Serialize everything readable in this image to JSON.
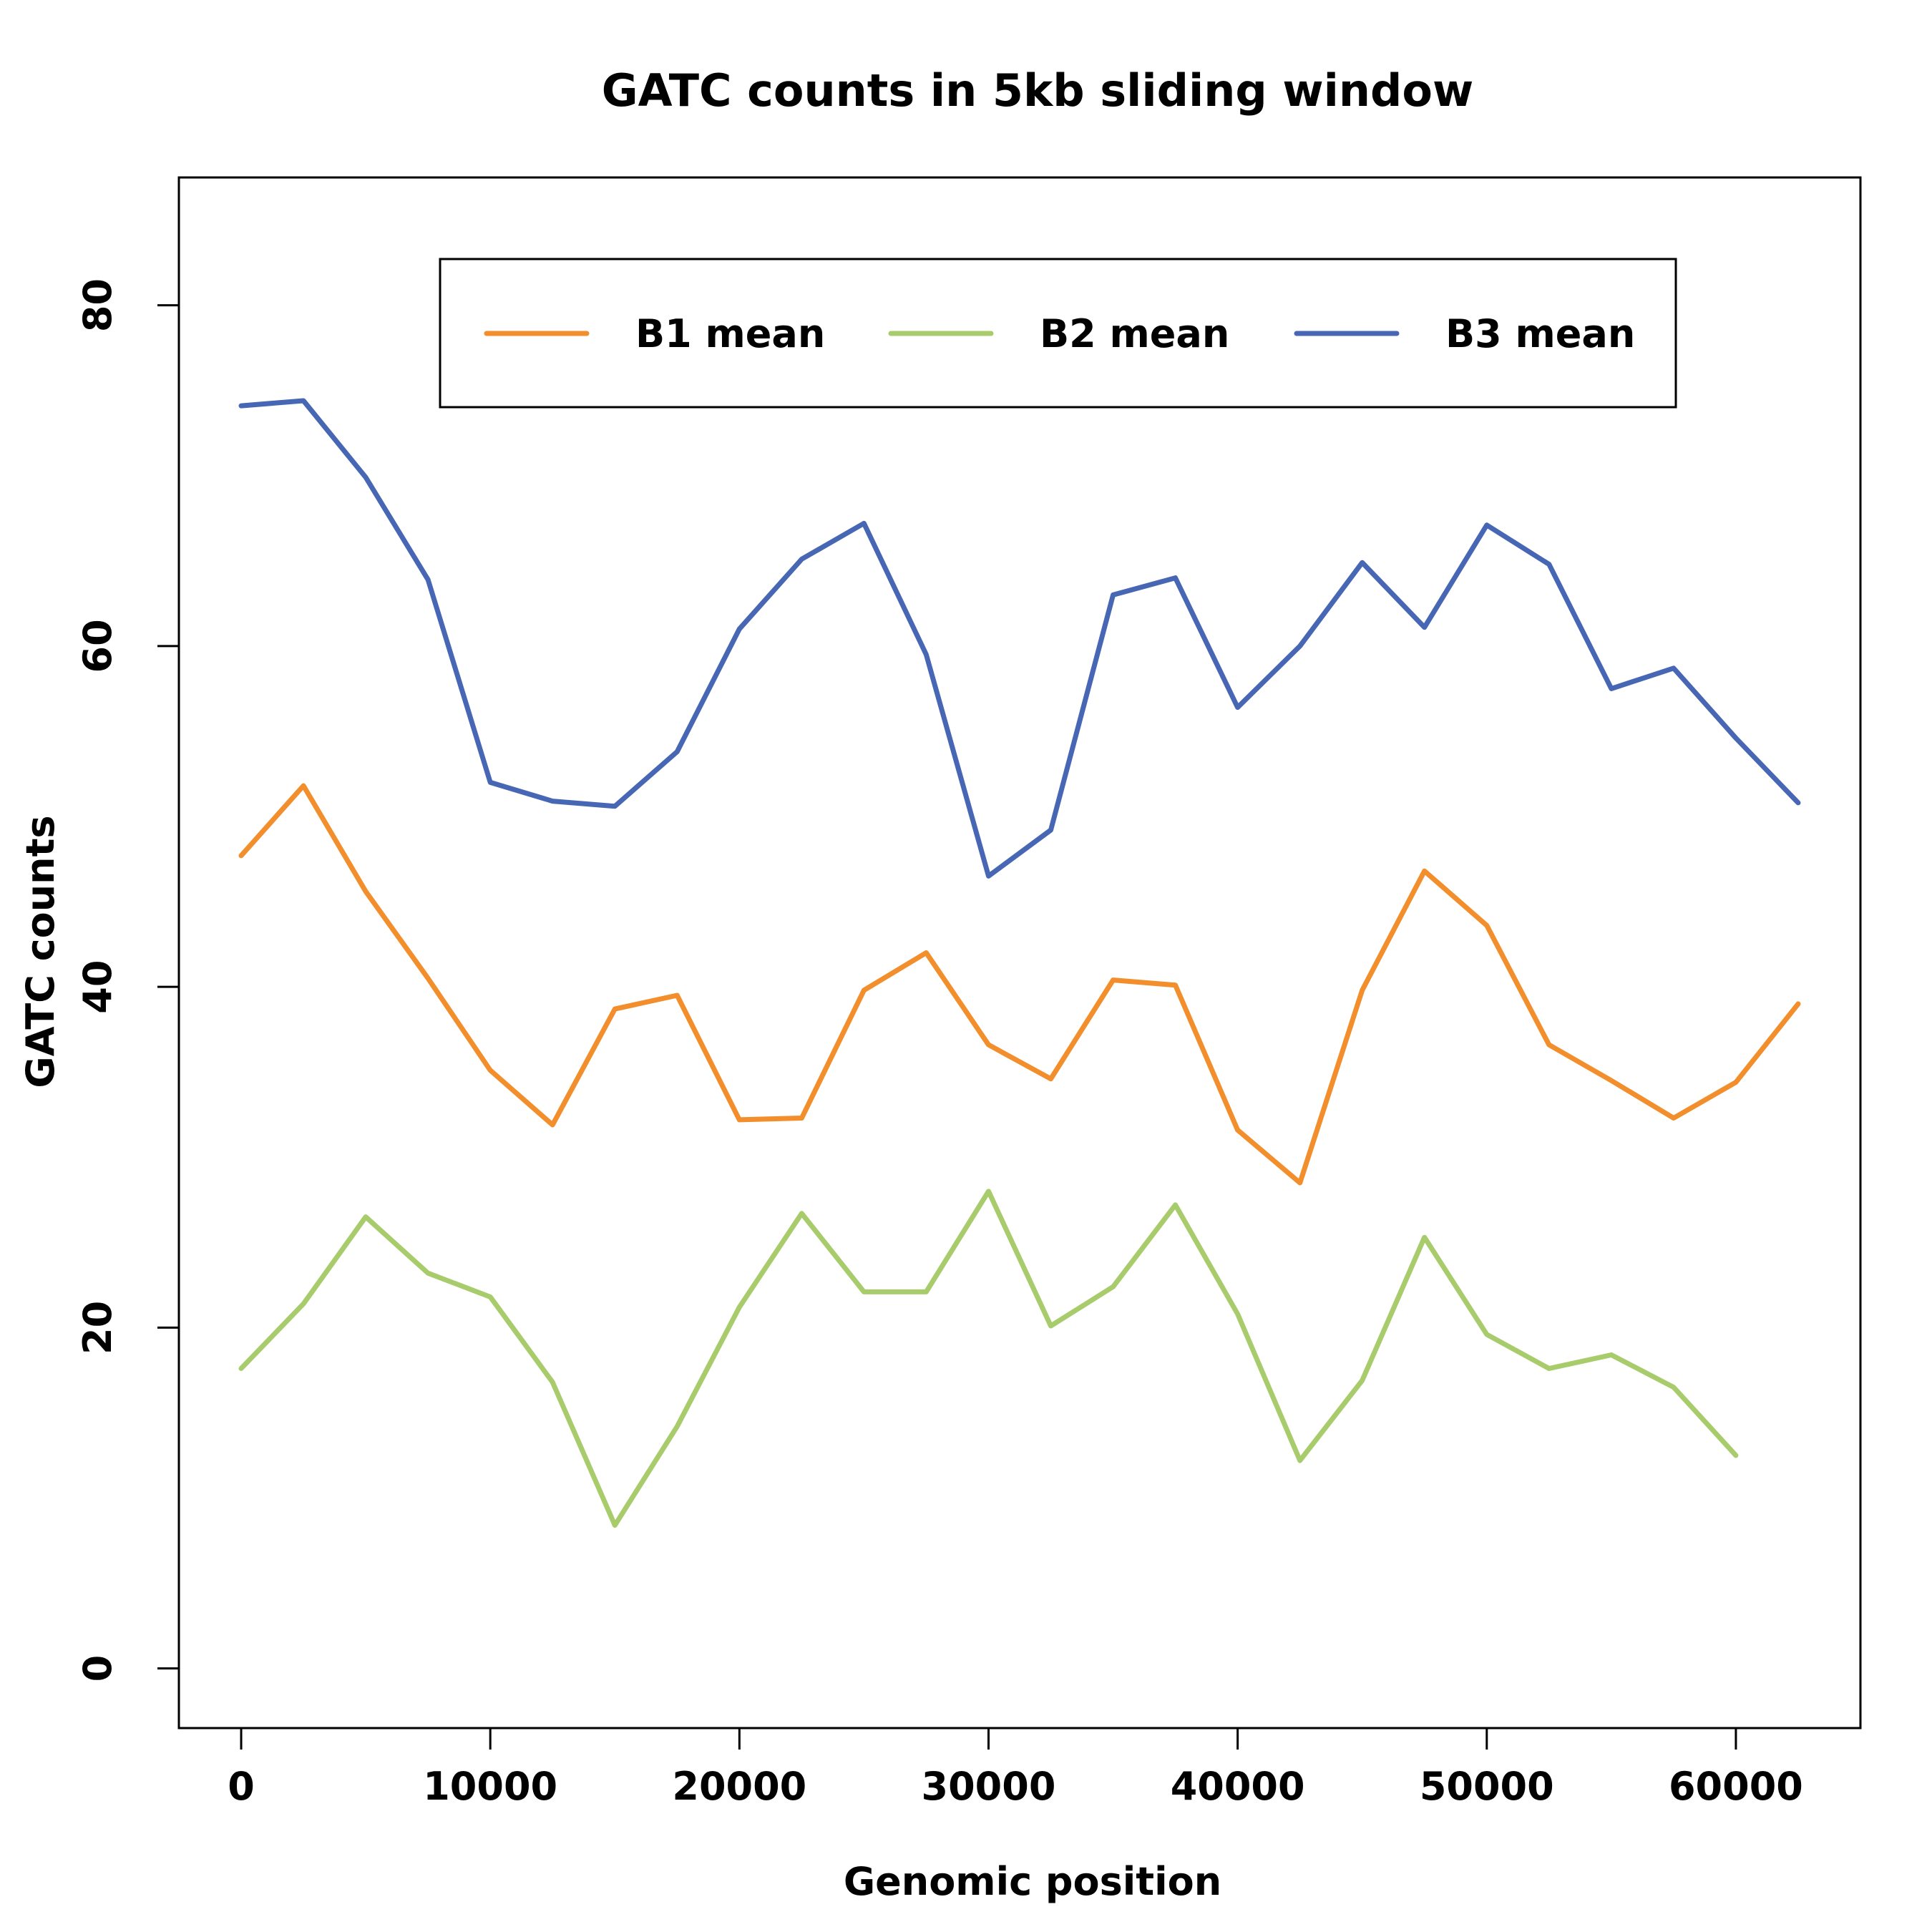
{
  "chart_data": {
    "type": "line",
    "title": "GATC counts in 5kb sliding window",
    "xlabel": "Genomic position",
    "ylabel": "GATC counts",
    "xlim": [
      -2500,
      65000
    ],
    "ylim": [
      -3.5,
      87.5
    ],
    "x_ticks": [
      0,
      10000,
      20000,
      30000,
      40000,
      50000,
      60000
    ],
    "x_tick_labels": [
      "0",
      "10000",
      "20000",
      "30000",
      "40000",
      "50000",
      "60000"
    ],
    "y_ticks": [
      0,
      20,
      40,
      60,
      80
    ],
    "y_tick_labels": [
      "0",
      "20",
      "40",
      "60",
      "80"
    ],
    "grid": false,
    "legend_position": "top",
    "series": [
      {
        "name": "B1 mean",
        "color": "#F28E2B",
        "x": [
          0,
          2500,
          5000,
          7500,
          10000,
          12500,
          15000,
          17500,
          20000,
          22500,
          25000,
          27500,
          30000,
          32500,
          35000,
          37500,
          40000,
          42500,
          45000,
          47500,
          50000,
          52500,
          55000,
          57500,
          60000,
          62500
        ],
        "values": [
          47.7,
          51.8,
          45.6,
          40.5,
          35.1,
          31.9,
          38.7,
          39.5,
          32.2,
          32.3,
          39.8,
          42.0,
          36.6,
          34.6,
          40.4,
          40.1,
          31.6,
          28.5,
          39.8,
          46.8,
          43.6,
          36.6,
          34.5,
          32.3,
          34.4,
          39.0
        ]
      },
      {
        "name": "B2 mean",
        "color": "#A8CC6C",
        "x": [
          0,
          2500,
          5000,
          7500,
          10000,
          12500,
          15000,
          17500,
          20000,
          22500,
          25000,
          27500,
          30000,
          32500,
          35000,
          37500,
          40000,
          42500,
          45000,
          47500,
          50000,
          52500,
          55000,
          57500,
          60000
        ],
        "values": [
          17.6,
          21.4,
          26.5,
          23.2,
          21.8,
          16.8,
          8.4,
          14.2,
          21.2,
          26.7,
          22.1,
          22.1,
          28.0,
          20.1,
          22.4,
          27.2,
          20.8,
          12.2,
          16.9,
          25.3,
          19.6,
          17.6,
          18.4,
          16.5,
          12.5
        ]
      },
      {
        "name": "B3 mean",
        "color": "#4767B5",
        "x": [
          0,
          2500,
          5000,
          7500,
          10000,
          12500,
          15000,
          17500,
          20000,
          22500,
          25000,
          27500,
          30000,
          32500,
          35000,
          37500,
          40000,
          42500,
          45000,
          47500,
          50000,
          52500,
          55000,
          57500,
          60000,
          62500
        ],
        "values": [
          74.1,
          74.4,
          69.9,
          63.9,
          52.0,
          50.9,
          50.6,
          53.8,
          61.0,
          65.1,
          67.2,
          59.5,
          46.5,
          49.2,
          63.0,
          64.0,
          56.4,
          60.0,
          64.9,
          61.1,
          67.1,
          64.8,
          57.5,
          58.7,
          54.6,
          50.8
        ]
      }
    ]
  }
}
